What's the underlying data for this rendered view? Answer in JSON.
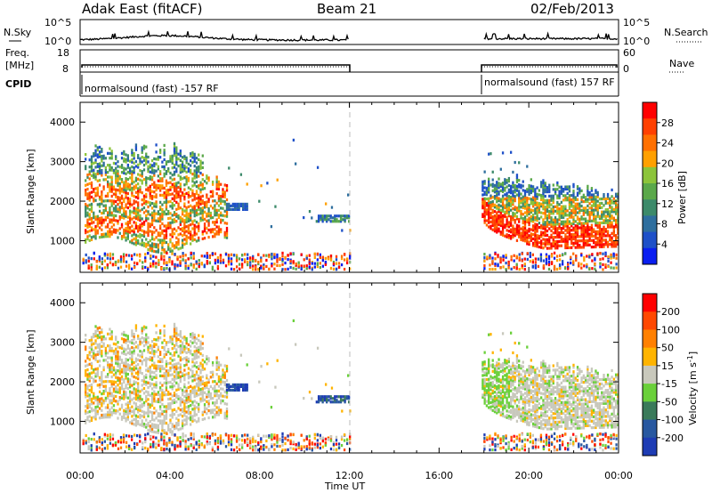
{
  "header": {
    "station": "Adak East (fitACF)",
    "beam": "Beam 21",
    "date": "02/Feb/2013"
  },
  "strip_labels": {
    "nsky": "N.Sky",
    "nsearch": "N.Search",
    "freq_line1": "Freq.",
    "freq_line2": "[MHz]",
    "nave": "Nave",
    "cpid": "CPID",
    "nsky_ticks": [
      "10^5",
      "10^0"
    ],
    "nsearch_ticks": [
      "10^5",
      "10^0"
    ],
    "freq_ticks": [
      "18",
      "8"
    ],
    "nave_ticks": [
      "60",
      "0"
    ]
  },
  "cpid_segments": [
    {
      "label": "normalsound (fast) -157 RF",
      "start_hour": 0,
      "end_hour": 12
    },
    {
      "label": "normalsound (fast) 157 RF",
      "start_hour": 18,
      "end_hour": 24
    }
  ],
  "chart_data": [
    {
      "type": "heatmap",
      "name": "power",
      "xlabel": "Time UT",
      "ylabel": "Slant Range [km]",
      "xlim": [
        0,
        24
      ],
      "ylim": [
        200,
        4500
      ],
      "x_ticks": [
        "00:00",
        "04:00",
        "08:00",
        "12:00",
        "16:00",
        "20:00",
        "00:00"
      ],
      "y_ticks": [
        1000,
        2000,
        3000,
        4000
      ],
      "colorbar": {
        "label": "Power [dB]",
        "ticks": [
          4,
          8,
          12,
          16,
          20,
          24,
          28
        ],
        "colors": [
          "#0a1ef0",
          "#1e50c8",
          "#2e6e9e",
          "#3c8a6a",
          "#5aa84a",
          "#8cc43a",
          "#ffa000",
          "#ff7000",
          "#ff4000",
          "#ff0000"
        ]
      },
      "no_data_hours": [
        12,
        18
      ],
      "features": [
        {
          "description": "scatter band",
          "start_hour": 0.2,
          "end_hour": 6.5,
          "range_km": [
            900,
            3300
          ]
        },
        {
          "description": "patch",
          "start_hour": 6.5,
          "end_hour": 7.4,
          "range_km": [
            1780,
            1920
          ]
        },
        {
          "description": "patch",
          "start_hour": 10.5,
          "end_hour": 12.0,
          "range_km": [
            1480,
            1660
          ]
        },
        {
          "description": "scatter band",
          "start_hour": 17.9,
          "end_hour": 24,
          "range_km": [
            750,
            2400
          ]
        }
      ]
    },
    {
      "type": "heatmap",
      "name": "velocity",
      "xlabel": "Time UT",
      "ylabel": "Slant Range [km]",
      "xlim": [
        0,
        24
      ],
      "ylim": [
        200,
        4500
      ],
      "x_ticks": [
        "00:00",
        "04:00",
        "08:00",
        "12:00",
        "16:00",
        "20:00",
        "00:00"
      ],
      "y_ticks": [
        1000,
        2000,
        3000,
        4000
      ],
      "colorbar": {
        "label_main": "Velocity [m s",
        "label_sup": "-1",
        "label_end": "]",
        "ticks": [
          200,
          100,
          50,
          15,
          -15,
          -50,
          -100,
          -200
        ],
        "colors": [
          "#1e3cb4",
          "#2858a0",
          "#3a7a5a",
          "#6ad03a",
          "#c8c8bc",
          "#ffb400",
          "#ff8000",
          "#ff4800",
          "#ff0000"
        ]
      },
      "no_data_hours": [
        12,
        18
      ]
    }
  ]
}
